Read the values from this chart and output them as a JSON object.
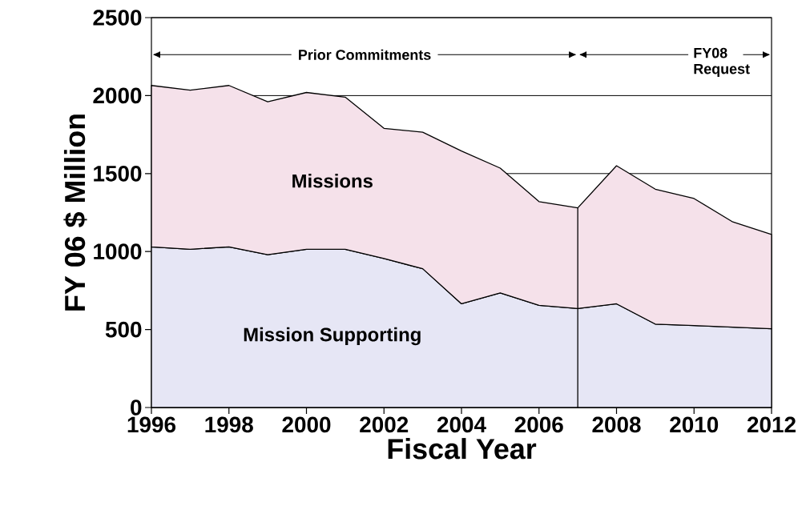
{
  "chart_data": {
    "type": "area",
    "stacked": true,
    "xlabel": "Fiscal Year",
    "ylabel": "FY 06 $ Million",
    "x": [
      1996,
      1997,
      1998,
      1999,
      2000,
      2001,
      2002,
      2003,
      2004,
      2005,
      2006,
      2007,
      2008,
      2009,
      2010,
      2011,
      2012
    ],
    "xlim": [
      1996,
      2012
    ],
    "ylim": [
      0,
      2500
    ],
    "xticks": [
      1996,
      1998,
      2000,
      2002,
      2004,
      2006,
      2008,
      2010,
      2012
    ],
    "yticks": [
      0,
      500,
      1000,
      1500,
      2000,
      2500
    ],
    "grid": "y",
    "series": [
      {
        "name": "Mission Supporting",
        "color": "#e6e6f5",
        "values": [
          1030,
          1015,
          1030,
          980,
          1015,
          1015,
          955,
          890,
          665,
          735,
          655,
          635,
          665,
          535,
          525,
          515,
          505
        ]
      },
      {
        "name": "Missions",
        "color": "#f5e1ea",
        "values": [
          1035,
          1020,
          1035,
          980,
          1005,
          975,
          835,
          875,
          980,
          800,
          665,
          645,
          885,
          865,
          815,
          675,
          605
        ]
      }
    ],
    "ref_lines": [
      {
        "axis": "x",
        "value": 2007
      }
    ],
    "annotations": [
      "Prior Commitments",
      "FY08 Request"
    ]
  }
}
